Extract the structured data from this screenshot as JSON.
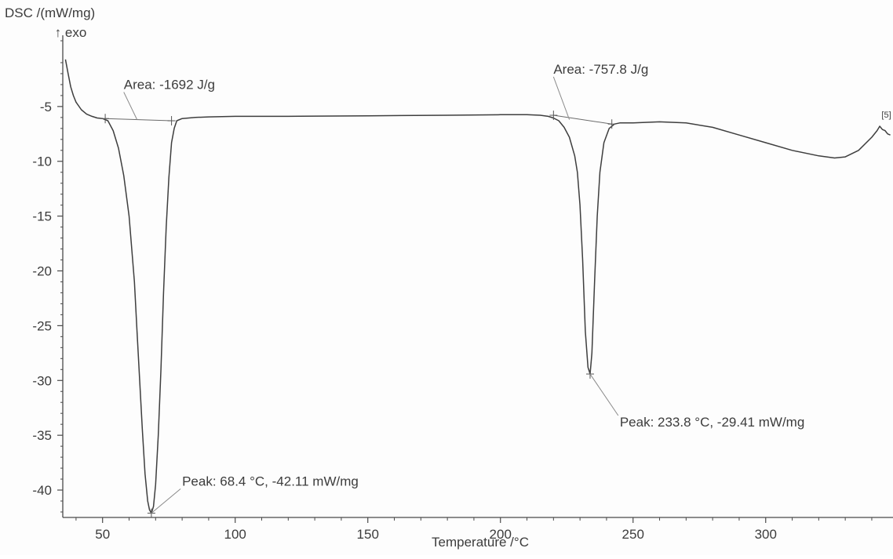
{
  "chart_data": {
    "type": "line",
    "ylabel": "DSC /(mW/mg)",
    "ylabel_sub": "↑ exo",
    "xlabel": "Temperature /°C",
    "xlim": [
      35,
      348
    ],
    "ylim": [
      -42.5,
      1.5
    ],
    "x_ticks": [
      50,
      100,
      150,
      200,
      250,
      300
    ],
    "y_ticks": [
      -5,
      -10,
      -15,
      -20,
      -25,
      -30,
      -35,
      -40
    ],
    "grid": false,
    "segment_label": "[5]",
    "series": [
      {
        "x": [
          36,
          37,
          38,
          39,
          40,
          42,
          44,
          46,
          48,
          50,
          52,
          54,
          56,
          58,
          60,
          62,
          63,
          64,
          65,
          66,
          67,
          67.7,
          68.4,
          69.2,
          70,
          71,
          72,
          73,
          74,
          75,
          76,
          77,
          78,
          80,
          85,
          90,
          100,
          120,
          150,
          180,
          200,
          210,
          215,
          218,
          220,
          222,
          224,
          226,
          228,
          229,
          230,
          231,
          232,
          233,
          233.8,
          234.5,
          235.5,
          236.5,
          237.5,
          239,
          241,
          243,
          245,
          250,
          260,
          270,
          280,
          290,
          300,
          310,
          320,
          326,
          330,
          335,
          340,
          342,
          343,
          344,
          345,
          346,
          347
        ],
        "y": [
          -0.7,
          -2.0,
          -3.2,
          -4.0,
          -4.6,
          -5.3,
          -5.7,
          -5.9,
          -6.05,
          -6.1,
          -6.3,
          -7.2,
          -8.8,
          -11.3,
          -15.0,
          -21.0,
          -25.5,
          -30.0,
          -34.5,
          -38.5,
          -41.0,
          -41.8,
          -42.11,
          -41.5,
          -39.5,
          -35.0,
          -29.0,
          -22.0,
          -16.0,
          -11.5,
          -8.3,
          -7.0,
          -6.3,
          -6.1,
          -6.0,
          -5.95,
          -5.9,
          -5.9,
          -5.85,
          -5.8,
          -5.75,
          -5.75,
          -5.8,
          -5.9,
          -6.05,
          -6.3,
          -6.9,
          -7.8,
          -9.5,
          -11.0,
          -14.0,
          -19.0,
          -25.5,
          -28.8,
          -29.41,
          -27.5,
          -21.0,
          -15.0,
          -11.0,
          -8.3,
          -7.0,
          -6.6,
          -6.5,
          -6.5,
          -6.4,
          -6.5,
          -6.9,
          -7.6,
          -8.3,
          -9.0,
          -9.5,
          -9.7,
          -9.6,
          -9.0,
          -7.8,
          -7.2,
          -6.8,
          -7.1,
          -7.2,
          -7.5,
          -7.6
        ]
      }
    ],
    "baselines": [
      {
        "x": [
          51,
          76
        ],
        "y": [
          -6.1,
          -6.3
        ]
      },
      {
        "x": [
          220,
          242
        ],
        "y": [
          -5.8,
          -6.6
        ]
      }
    ],
    "markers": [
      {
        "x": 51,
        "y": -6.1
      },
      {
        "x": 76,
        "y": -6.3
      },
      {
        "x": 68.4,
        "y": -42.11
      },
      {
        "x": 220,
        "y": -5.8
      },
      {
        "x": 242,
        "y": -6.6
      },
      {
        "x": 233.8,
        "y": -29.41
      }
    ],
    "annotations": [
      {
        "text": "Area: -1692 J/g",
        "point_x": 63,
        "point_y": -6.2,
        "label_x": 58,
        "label_y": -3.4,
        "anchor": "start"
      },
      {
        "text": "Area: -757.8 J/g",
        "point_x": 226,
        "point_y": -6.2,
        "label_x": 220,
        "label_y": -2.0,
        "anchor": "start"
      },
      {
        "text": "Peak: 68.4 °C, -42.11 mW/mg",
        "point_x": 68.4,
        "point_y": -42.11,
        "label_x": 80,
        "label_y": -39.6,
        "anchor": "start"
      },
      {
        "text": "Peak: 233.8 °C, -29.41 mW/mg",
        "point_x": 233.8,
        "point_y": -29.41,
        "label_x": 245,
        "label_y": -34.2,
        "anchor": "start"
      }
    ]
  }
}
